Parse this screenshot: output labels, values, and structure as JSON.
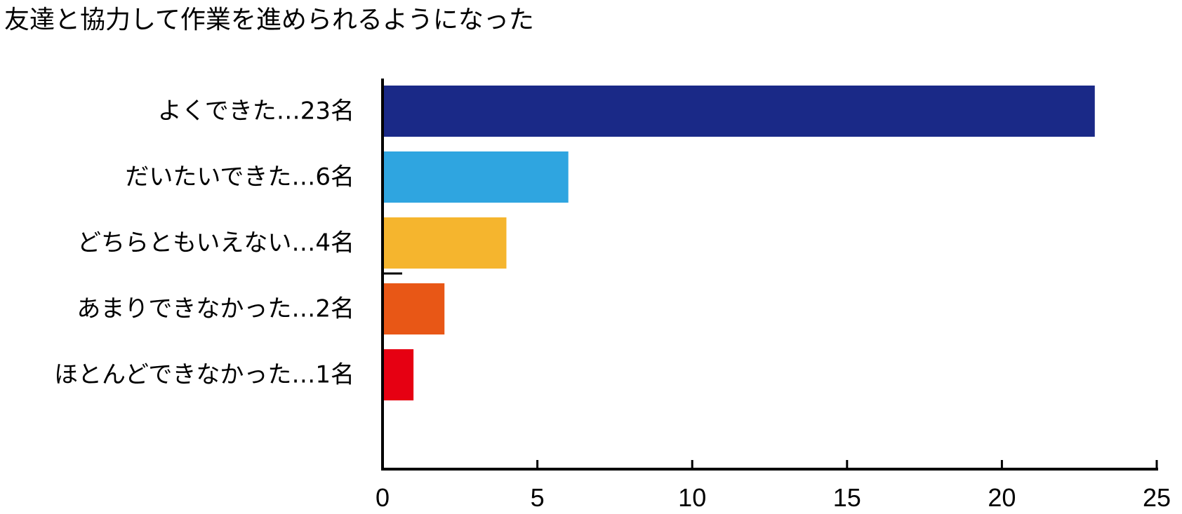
{
  "chart_data": {
    "type": "bar",
    "orientation": "horizontal",
    "title": "友達と協力して作業を進められるようになった",
    "categories": [
      "よくできた…23名",
      "だいたいできた…6名",
      "どちらともいえない…4名",
      "あまりできなかった…2名",
      "ほとんどできなかった…1名"
    ],
    "values": [
      23,
      6,
      4,
      2,
      1
    ],
    "colors": [
      "#1a2987",
      "#2fa5e0",
      "#f5b52e",
      "#e85716",
      "#e60012"
    ],
    "xlim": [
      0,
      25
    ],
    "xticks": [
      0,
      5,
      10,
      15,
      20,
      25
    ],
    "xtick_labels": [
      "0",
      "5",
      "10",
      "15",
      "20",
      "25"
    ],
    "xlabel": "",
    "ylabel": "",
    "grid": false,
    "legend": false
  }
}
